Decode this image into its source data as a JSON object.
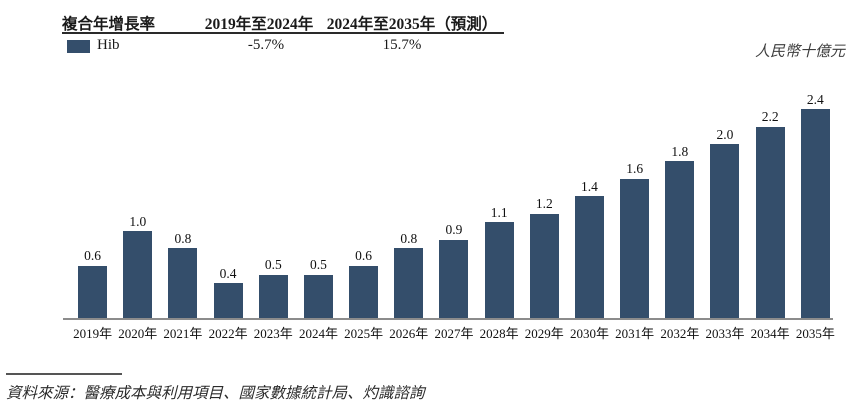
{
  "header": {
    "row_label": "複合年增長率",
    "period1_label": "2019年至2024年",
    "period2_label": "2024年至2035年（預測）",
    "legend_label": "Hib",
    "period1_value": "-5.7%",
    "period2_value": "15.7%"
  },
  "unit_label": "人民幣十億元",
  "footnote": "資料來源：醫療成本與利用項目、國家數據統計局、灼識諮詢",
  "colors": {
    "bar": "#344e6b",
    "text": "#1a1a1a",
    "axis": "#8c8c8c"
  },
  "chart_data": {
    "type": "bar",
    "title": "",
    "xlabel": "",
    "ylabel": "人民幣十億元",
    "legend_position": "top-left",
    "grid": false,
    "ylim": [
      0,
      2.6
    ],
    "series_name": "Hib",
    "categories": [
      "2019年",
      "2020年",
      "2021年",
      "2022年",
      "2023年",
      "2024年",
      "2025年",
      "2026年",
      "2027年",
      "2028年",
      "2029年",
      "2030年",
      "2031年",
      "2032年",
      "2033年",
      "2034年",
      "2035年"
    ],
    "values": [
      0.6,
      1.0,
      0.8,
      0.4,
      0.5,
      0.5,
      0.6,
      0.8,
      0.9,
      1.1,
      1.2,
      1.4,
      1.6,
      1.8,
      2.0,
      2.2,
      2.4
    ],
    "cagr": [
      {
        "period": "2019年至2024年",
        "value": "-5.7%"
      },
      {
        "period": "2024年至2035年（預測）",
        "value": "15.7%"
      }
    ]
  }
}
